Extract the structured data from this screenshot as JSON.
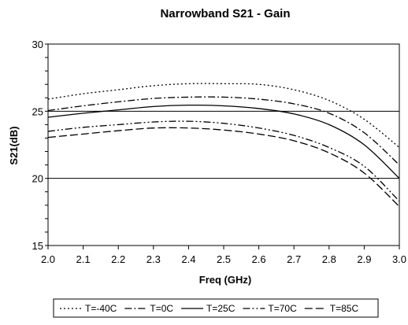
{
  "chart_data": {
    "type": "line",
    "title": "Narrowband S21 - Gain",
    "xlabel": "Freq (GHz)",
    "ylabel": "S21(dB)",
    "xlim": [
      2.0,
      3.0
    ],
    "ylim": [
      15,
      30
    ],
    "xticks": [
      "2.0",
      "2.1",
      "2.2",
      "2.3",
      "2.4",
      "2.5",
      "2.6",
      "2.7",
      "2.8",
      "2.9",
      "3.0"
    ],
    "yticks": [
      "15",
      "20",
      "25",
      "30"
    ],
    "grid": "horizontal",
    "legend_position": "bottom",
    "x": [
      2.0,
      2.1,
      2.2,
      2.3,
      2.4,
      2.5,
      2.6,
      2.7,
      2.8,
      2.9,
      3.0
    ],
    "series": [
      {
        "name": "T=-40C",
        "dash": "dotted",
        "values": [
          25.9,
          26.3,
          26.6,
          26.9,
          27.05,
          27.05,
          27.0,
          26.6,
          25.8,
          24.4,
          22.3
        ]
      },
      {
        "name": "T=0C",
        "dash": "dash-dot",
        "values": [
          25.05,
          25.4,
          25.7,
          25.95,
          26.05,
          26.05,
          25.9,
          25.55,
          24.85,
          23.4,
          21.0
        ]
      },
      {
        "name": "T=25C",
        "dash": "solid",
        "values": [
          24.55,
          24.85,
          25.1,
          25.35,
          25.45,
          25.4,
          25.2,
          24.8,
          24.0,
          22.5,
          20.0
        ]
      },
      {
        "name": "T=70C",
        "dash": "dash-dot-dot",
        "values": [
          23.5,
          23.8,
          24.0,
          24.2,
          24.25,
          24.1,
          23.75,
          23.2,
          22.3,
          20.9,
          18.3
        ]
      },
      {
        "name": "T=85C",
        "dash": "long-dash",
        "values": [
          23.05,
          23.3,
          23.55,
          23.75,
          23.75,
          23.6,
          23.3,
          22.8,
          21.9,
          20.4,
          17.9
        ]
      }
    ]
  }
}
